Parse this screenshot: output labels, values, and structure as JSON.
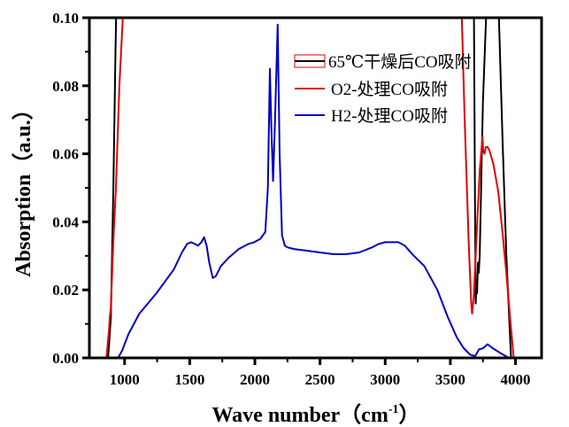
{
  "chart_data": {
    "type": "line",
    "title": "",
    "xlabel": "Wave number（cm",
    "xlabel_sup": "-1",
    "xlabel_end": "）",
    "ylabel": "Absorption（a.u.）",
    "xlim": [
      730,
      4200
    ],
    "ylim": [
      0,
      0.1
    ],
    "xticks": [
      1000,
      1500,
      2000,
      2500,
      3000,
      3500,
      4000
    ],
    "xtick_labels": [
      "1000",
      "1500",
      "2000",
      "2500",
      "3000",
      "3500",
      "4000"
    ],
    "yticks": [
      0,
      0.02,
      0.04,
      0.06,
      0.08,
      0.1
    ],
    "ytick_labels": [
      "0.00",
      "0.02",
      "0.04",
      "0.06",
      "0.08",
      "0.10"
    ],
    "grid": false,
    "legend_position": "top-right",
    "series": [
      {
        "name": "65℃干燥后CO吸附",
        "color": "#000000",
        "segments": [
          [
            [
              874,
              0
            ],
            [
              895,
              0.012
            ],
            [
              914,
              0.05
            ],
            [
              930,
              0.09
            ],
            [
              940,
              0.11
            ]
          ],
          [
            [
              3675,
              0.11
            ],
            [
              3681,
              0.1
            ],
            [
              3690,
              0.04
            ],
            [
              3695,
              0.016
            ],
            [
              3700,
              0.022
            ],
            [
              3705,
              0.019
            ],
            [
              3712,
              0.028
            ],
            [
              3718,
              0.025
            ],
            [
              3725,
              0.03
            ],
            [
              3750,
              0.075
            ],
            [
              3774,
              0.1
            ],
            [
              3778,
              0.11
            ]
          ],
          [
            [
              3868,
              0.11
            ],
            [
              3873,
              0.1
            ],
            [
              3900,
              0.065
            ],
            [
              3930,
              0.03
            ],
            [
              3966,
              0
            ]
          ]
        ]
      },
      {
        "name": "O2-处理CO吸附",
        "color": "#e00000",
        "segments": [
          [
            [
              861,
              0
            ],
            [
              880,
              0.008
            ],
            [
              887,
              0.012
            ],
            [
              895,
              0.015
            ],
            [
              915,
              0.035
            ],
            [
              934,
              0.05
            ],
            [
              960,
              0.08
            ],
            [
              987,
              0.1
            ],
            [
              992,
              0.11
            ]
          ],
          [
            [
              3582,
              0.11
            ],
            [
              3588,
              0.1
            ],
            [
              3610,
              0.07
            ],
            [
              3640,
              0.035
            ],
            [
              3660,
              0.016
            ],
            [
              3667,
              0.013
            ],
            [
              3680,
              0.018
            ],
            [
              3700,
              0.035
            ],
            [
              3725,
              0.055
            ],
            [
              3747,
              0.065
            ],
            [
              3752,
              0.061
            ],
            [
              3762,
              0.06
            ],
            [
              3772,
              0.062
            ],
            [
              3785,
              0.062
            ],
            [
              3800,
              0.061
            ],
            [
              3830,
              0.057
            ],
            [
              3867,
              0.049
            ],
            [
              3900,
              0.037
            ],
            [
              3930,
              0.025
            ],
            [
              3960,
              0.011
            ],
            [
              3986,
              0
            ]
          ]
        ]
      },
      {
        "name": "H2-处理CO吸附",
        "color": "#0000c0",
        "segments": [
          [
            [
              900,
              0
            ],
            [
              950,
              0
            ],
            [
              980,
              0.002
            ],
            [
              1030,
              0.007
            ],
            [
              1113,
              0.013
            ],
            [
              1245,
              0.019
            ],
            [
              1378,
              0.026
            ],
            [
              1440,
              0.031
            ],
            [
              1480,
              0.0335
            ],
            [
              1510,
              0.034
            ],
            [
              1540,
              0.0335
            ],
            [
              1564,
              0.033
            ],
            [
              1590,
              0.034
            ],
            [
              1610,
              0.0355
            ],
            [
              1630,
              0.033
            ],
            [
              1650,
              0.028
            ],
            [
              1677,
              0.0235
            ],
            [
              1700,
              0.024
            ],
            [
              1740,
              0.027
            ],
            [
              1800,
              0.0295
            ],
            [
              1876,
              0.032
            ],
            [
              1950,
              0.0335
            ],
            [
              1995,
              0.034
            ],
            [
              2042,
              0.035
            ],
            [
              2080,
              0.037
            ],
            [
              2100,
              0.05
            ],
            [
              2115,
              0.085
            ],
            [
              2125,
              0.07
            ],
            [
              2140,
              0.052
            ],
            [
              2155,
              0.07
            ],
            [
              2175,
              0.098
            ],
            [
              2190,
              0.06
            ],
            [
              2208,
              0.036
            ],
            [
              2230,
              0.033
            ],
            [
              2250,
              0.0325
            ],
            [
              2300,
              0.032
            ],
            [
              2400,
              0.0315
            ],
            [
              2500,
              0.031
            ],
            [
              2600,
              0.0305
            ],
            [
              2700,
              0.0305
            ],
            [
              2800,
              0.031
            ],
            [
              2900,
              0.0325
            ],
            [
              2950,
              0.0335
            ],
            [
              3000,
              0.034
            ],
            [
              3100,
              0.034
            ],
            [
              3150,
              0.033
            ],
            [
              3220,
              0.03
            ],
            [
              3300,
              0.027
            ],
            [
              3400,
              0.02
            ],
            [
              3480,
              0.012
            ],
            [
              3550,
              0.006
            ],
            [
              3600,
              0.003
            ],
            [
              3650,
              0.001
            ],
            [
              3690,
              0.0005
            ],
            [
              3720,
              0.0025
            ],
            [
              3750,
              0.0028
            ],
            [
              3785,
              0.004
            ],
            [
              3820,
              0.003
            ],
            [
              3880,
              0.0015
            ],
            [
              3950,
              0
            ]
          ]
        ]
      }
    ]
  }
}
